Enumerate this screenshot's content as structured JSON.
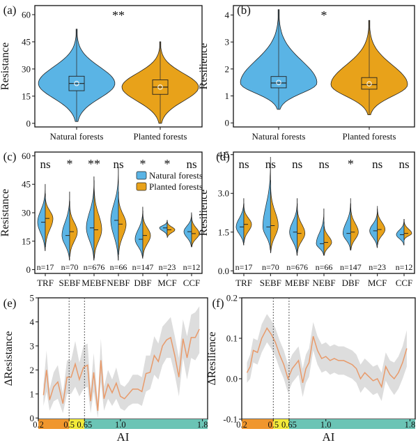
{
  "colors": {
    "natural": "#5ab4e5",
    "planted": "#e8a21a",
    "line": "#e89a6a",
    "band": "#d2d2d2",
    "ai_bar_orange": "#f0962d",
    "ai_bar_yellow": "#f2ea3a",
    "ai_bar_teal": "#6bc4b5"
  },
  "chart_data": [
    {
      "panel": "(a)",
      "type": "violin",
      "ylabel": "Resistance",
      "yticks": [
        0,
        15,
        30,
        45,
        60
      ],
      "ylim": [
        -2,
        65
      ],
      "categories": [
        "Natural forests",
        "Planted forests"
      ],
      "significance": "**",
      "series": [
        {
          "name": "Natural forests",
          "median": 22,
          "q1": 18,
          "q3": 26,
          "mean": 22,
          "min": 1,
          "max": 52
        },
        {
          "name": "Planted forests",
          "median": 20,
          "q1": 16,
          "q3": 24,
          "mean": 20,
          "min": 0,
          "max": 45
        }
      ]
    },
    {
      "panel": "(b)",
      "type": "violin",
      "ylabel": "Resilience",
      "yticks": [
        0,
        1,
        2,
        3,
        4
      ],
      "ylim": [
        -0.15,
        4.35
      ],
      "categories": [
        "Natural forests",
        "Planted forests"
      ],
      "significance": "*",
      "series": [
        {
          "name": "Natural forests",
          "median": 1.48,
          "q1": 1.3,
          "q3": 1.72,
          "mean": 1.5,
          "min": 0.5,
          "max": 4.2
        },
        {
          "name": "Planted forests",
          "median": 1.42,
          "q1": 1.25,
          "q3": 1.68,
          "mean": 1.45,
          "min": 0.3,
          "max": 3.8
        }
      ]
    },
    {
      "panel": "(c)",
      "type": "split-violin",
      "ylabel": "Resistance",
      "yticks": [
        0,
        15,
        30,
        45,
        60
      ],
      "ylim": [
        -2,
        62
      ],
      "categories": [
        "TRF",
        "SEBF",
        "MEBF",
        "NEBF",
        "DBF",
        "MCF",
        "CCF"
      ],
      "significance": [
        "ns",
        "*",
        "**",
        "ns",
        "*",
        "*",
        "ns"
      ],
      "n_labels": [
        "n=17",
        "n=70",
        "n=676",
        "n=66",
        "n=147",
        "n=23",
        "n=12"
      ],
      "legend": [
        "Natural forests",
        "Planted forests"
      ],
      "series": [
        {
          "name": "Natural forests",
          "median": [
            25,
            18,
            22,
            26,
            16,
            22,
            20
          ],
          "min": [
            10,
            5,
            5,
            5,
            6,
            18,
            12
          ],
          "max": [
            45,
            41,
            49,
            54,
            33,
            26,
            30
          ]
        },
        {
          "name": "Planted forests",
          "median": [
            27,
            20,
            21,
            24,
            18,
            21,
            19
          ],
          "min": [
            12,
            7,
            6,
            8,
            7,
            17,
            12
          ],
          "max": [
            40,
            36,
            47,
            41,
            31,
            26,
            29
          ]
        }
      ]
    },
    {
      "panel": "(d)",
      "type": "split-violin",
      "ylabel": "Resilience",
      "yticks": [
        0.0,
        1.5,
        3.0,
        4.5
      ],
      "yticklabels": [
        "0.0",
        "1.5",
        "3.0",
        "4.5"
      ],
      "ylim": [
        -0.1,
        4.6
      ],
      "categories": [
        "TRF",
        "SEBF",
        "MEBF",
        "NEBF",
        "DBF",
        "MCF",
        "CCF"
      ],
      "significance": [
        "ns",
        "ns",
        "ns",
        "ns",
        "*",
        "ns",
        "ns"
      ],
      "n_labels": [
        "n=17",
        "n=70",
        "n=676",
        "n=66",
        "n=147",
        "n=23",
        "n=12"
      ],
      "series": [
        {
          "name": "Natural forests",
          "median": [
            1.7,
            1.7,
            1.5,
            1.05,
            1.45,
            1.55,
            1.4
          ],
          "min": [
            1.0,
            0.8,
            0.6,
            0.6,
            0.8,
            0.9,
            1.0
          ],
          "max": [
            2.8,
            4.4,
            2.8,
            2.4,
            2.8,
            2.4,
            2.0
          ]
        },
        {
          "name": "Planted forests",
          "median": [
            1.8,
            1.75,
            1.45,
            1.1,
            1.5,
            1.6,
            1.45
          ],
          "min": [
            1.1,
            0.7,
            0.7,
            0.6,
            0.8,
            1.0,
            1.2
          ],
          "max": [
            2.6,
            3.5,
            2.6,
            1.9,
            2.6,
            2.5,
            2.0
          ]
        }
      ]
    },
    {
      "panel": "(e)",
      "type": "line",
      "xlabel": "AI",
      "ylabel": "ΔResistance",
      "yticks": [
        0,
        1,
        2,
        3,
        4,
        5
      ],
      "ylim": [
        -0.05,
        5
      ],
      "xticks": [
        0.2,
        0.5,
        0.65,
        1.0,
        1.8
      ],
      "xticklabels": [
        "0.2",
        "0.5",
        "0.65",
        "1.0",
        "1.8"
      ],
      "xlim": [
        0.2,
        1.85
      ],
      "vlines": [
        0.5,
        0.65
      ],
      "x": [
        0.25,
        0.28,
        0.31,
        0.35,
        0.39,
        0.44,
        0.48,
        0.52,
        0.56,
        0.6,
        0.64,
        0.68,
        0.71,
        0.74,
        0.78,
        0.81,
        0.84,
        0.88,
        0.92,
        0.96,
        1.0,
        1.04,
        1.08,
        1.12,
        1.17,
        1.21,
        1.25,
        1.29,
        1.33,
        1.37,
        1.41,
        1.45,
        1.49,
        1.53,
        1.57,
        1.61,
        1.65,
        1.69,
        1.73,
        1.77
      ],
      "y": [
        0.95,
        2.0,
        0.75,
        1.3,
        1.5,
        0.6,
        1.7,
        1.7,
        2.25,
        1.6,
        2.1,
        2.2,
        0.7,
        1.9,
        0.3,
        2.4,
        0.8,
        1.4,
        1.05,
        1.45,
        0.9,
        0.8,
        1.0,
        1.2,
        1.2,
        1.1,
        1.85,
        1.9,
        2.6,
        2.35,
        3.0,
        3.25,
        3.35,
        2.6,
        1.7,
        3.3,
        2.5,
        3.35,
        3.35,
        3.7
      ],
      "lower": [
        0.5,
        1.1,
        0.3,
        0.7,
        0.8,
        0.2,
        1.0,
        1.0,
        1.3,
        0.9,
        1.2,
        1.3,
        0.2,
        1.1,
        0.0,
        1.5,
        0.3,
        0.8,
        0.5,
        0.8,
        0.4,
        0.3,
        0.5,
        0.6,
        0.6,
        0.5,
        1.1,
        1.2,
        1.8,
        1.6,
        2.2,
        2.5,
        2.5,
        1.8,
        0.9,
        2.5,
        1.6,
        2.5,
        2.4,
        2.7
      ],
      "upper": [
        1.4,
        2.8,
        1.2,
        1.9,
        2.2,
        1.0,
        2.4,
        2.4,
        3.2,
        2.3,
        3.0,
        3.1,
        1.2,
        2.7,
        0.7,
        3.3,
        1.3,
        2.0,
        1.6,
        2.1,
        1.4,
        1.3,
        1.5,
        1.8,
        1.8,
        1.7,
        2.6,
        2.6,
        3.4,
        3.1,
        3.8,
        4.0,
        4.2,
        3.4,
        2.5,
        4.1,
        3.4,
        4.3,
        4.4,
        4.65
      ],
      "ai_bar": [
        {
          "label": "0.2",
          "from": 0.2,
          "to": 0.5
        },
        {
          "label": "0.5",
          "from": 0.5,
          "to": 0.65
        },
        {
          "label": "0.65",
          "from": 0.65,
          "to": 1.85
        }
      ]
    },
    {
      "panel": "(f)",
      "type": "line",
      "xlabel": "AI",
      "ylabel": "ΔResilience",
      "yticks": [
        -0.1,
        0.0,
        0.1,
        0.2
      ],
      "yticklabels": [
        "-0.1",
        "0.0",
        "0.1",
        "0.2"
      ],
      "ylim": [
        -0.1,
        0.2
      ],
      "xticks": [
        0.2,
        0.5,
        0.65,
        1.0,
        1.8
      ],
      "xticklabels": [
        "0.2",
        "0.5",
        "0.65",
        "1.0",
        "1.8"
      ],
      "xlim": [
        0.2,
        1.85
      ],
      "vlines": [
        0.5,
        0.65
      ],
      "x": [
        0.25,
        0.28,
        0.31,
        0.35,
        0.39,
        0.44,
        0.48,
        0.52,
        0.56,
        0.6,
        0.64,
        0.68,
        0.71,
        0.74,
        0.78,
        0.81,
        0.84,
        0.88,
        0.92,
        0.96,
        1.0,
        1.04,
        1.08,
        1.12,
        1.17,
        1.21,
        1.25,
        1.29,
        1.33,
        1.37,
        1.41,
        1.45,
        1.49,
        1.53,
        1.57,
        1.61,
        1.65,
        1.69,
        1.73,
        1.77
      ],
      "y": [
        0.015,
        0.03,
        0.07,
        0.065,
        0.1,
        0.125,
        0.11,
        0.09,
        0.06,
        0.035,
        0.0,
        0.025,
        0.035,
        0.045,
        -0.01,
        0.025,
        0.04,
        0.105,
        0.07,
        0.05,
        0.055,
        0.045,
        0.05,
        0.045,
        0.045,
        0.04,
        0.035,
        0.025,
        0.0,
        0.015,
        0.005,
        -0.005,
        0.0,
        -0.02,
        0.03,
        0.01,
        0.0,
        0.015,
        0.04,
        0.075
      ],
      "lower": [
        -0.01,
        0.0,
        0.04,
        0.035,
        0.065,
        0.09,
        0.075,
        0.055,
        0.025,
        0.0,
        -0.035,
        -0.01,
        0.0,
        0.01,
        -0.045,
        -0.01,
        0.005,
        0.07,
        0.035,
        0.015,
        0.02,
        0.01,
        0.015,
        0.01,
        0.01,
        0.005,
        0.0,
        -0.01,
        -0.035,
        -0.02,
        -0.03,
        -0.04,
        -0.035,
        -0.055,
        -0.005,
        -0.025,
        -0.04,
        -0.025,
        0.0,
        0.03
      ],
      "upper": [
        0.04,
        0.06,
        0.1,
        0.095,
        0.135,
        0.16,
        0.145,
        0.125,
        0.095,
        0.07,
        0.035,
        0.06,
        0.07,
        0.08,
        0.025,
        0.06,
        0.075,
        0.14,
        0.105,
        0.085,
        0.09,
        0.08,
        0.085,
        0.08,
        0.08,
        0.075,
        0.07,
        0.06,
        0.035,
        0.05,
        0.04,
        0.03,
        0.035,
        0.015,
        0.065,
        0.045,
        0.04,
        0.055,
        0.08,
        0.12
      ],
      "ai_bar": [
        {
          "label": "0.2",
          "from": 0.2,
          "to": 0.5
        },
        {
          "label": "0.5",
          "from": 0.5,
          "to": 0.65
        },
        {
          "label": "0.65",
          "from": 0.65,
          "to": 1.85
        }
      ]
    }
  ]
}
